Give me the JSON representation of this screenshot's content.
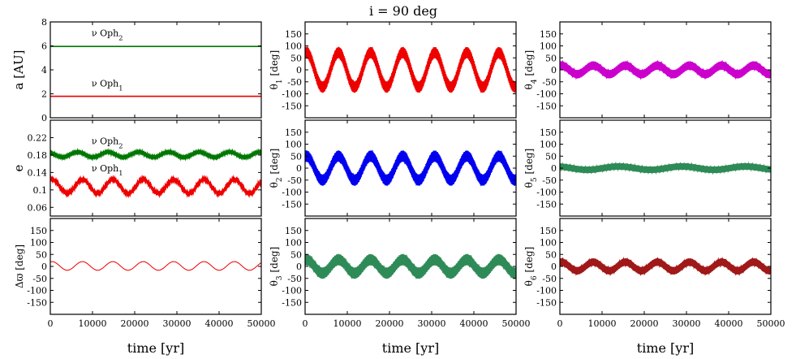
{
  "chart_data": {
    "type": "line",
    "title": "i = 90 deg",
    "xlabel": "time [yr]",
    "xlim": [
      0,
      50000
    ],
    "xticks": [
      0,
      10000,
      20000,
      30000,
      40000,
      50000
    ],
    "panels": [
      {
        "id": "a",
        "ylabel": "a [AU]",
        "ylim": [
          0,
          8
        ],
        "yticks": [
          0,
          2,
          4,
          6,
          8
        ],
        "show_xticklabels": false,
        "series": [
          {
            "name": "ν Oph2",
            "color": "#007700",
            "kind": "constant",
            "value": 5.95
          },
          {
            "name": "ν Oph1",
            "color": "#ee0000",
            "kind": "constant",
            "value": 1.79
          }
        ],
        "annotations": [
          {
            "text": "ν Oph2",
            "x": 13500,
            "y": 6.8
          },
          {
            "text": "ν Oph1",
            "x": 13500,
            "y": 2.6
          }
        ]
      },
      {
        "id": "e",
        "ylabel": "e",
        "ylim": [
          0.04,
          0.26
        ],
        "yticks": [
          0.06,
          0.1,
          0.14,
          0.18,
          0.22
        ],
        "show_xticklabels": false,
        "series": [
          {
            "name": "ν Oph2",
            "color": "#007700",
            "kind": "oscillation",
            "mean": 0.181,
            "amplitude": 0.006,
            "period": 7200,
            "phase": 2.2,
            "jitter": 0.002,
            "jitter_period": 220,
            "lw": 2.5
          },
          {
            "name": "ν Oph1",
            "color": "#ee0000",
            "kind": "oscillation",
            "mean": 0.108,
            "amplitude": 0.016,
            "period": 7200,
            "phase": 1.2,
            "jitter": 0.003,
            "jitter_period": 220,
            "lw": 2.5
          }
        ],
        "annotations": [
          {
            "text": "ν Oph2",
            "x": 13500,
            "y": 0.205
          },
          {
            "text": "ν Oph1",
            "x": 13500,
            "y": 0.143
          }
        ]
      },
      {
        "id": "dw",
        "ylabel": "Δϖ [deg]",
        "ylim": [
          -200,
          200
        ],
        "yticks": [
          -150,
          -100,
          -50,
          0,
          50,
          100,
          150
        ],
        "show_xticklabels": true,
        "series": [
          {
            "name": "Δϖ",
            "color": "#ee0000",
            "kind": "oscillation",
            "mean": 2,
            "amplitude": 18,
            "period": 7200,
            "phase": 1.2,
            "jitter": 0,
            "jitter_period": 220,
            "lw": 1
          }
        ],
        "annotations": []
      },
      {
        "id": "t1",
        "ylabel": "θ1 [deg]",
        "ylim": [
          -200,
          200
        ],
        "yticks": [
          -150,
          -100,
          -50,
          0,
          50,
          100,
          150
        ],
        "show_xticklabels": false,
        "series": [
          {
            "name": "θ1",
            "color": "#ee0000",
            "kind": "oscillation",
            "mean": 0,
            "amplitude": 72,
            "period": 7600,
            "phase": 1.3,
            "jitter": 24,
            "jitter_period": 180,
            "lw": 1.6
          }
        ],
        "annotations": []
      },
      {
        "id": "t2",
        "ylabel": "θ2 [deg]",
        "ylim": [
          -200,
          200
        ],
        "yticks": [
          -150,
          -100,
          -50,
          0,
          50,
          100,
          150
        ],
        "show_xticklabels": false,
        "series": [
          {
            "name": "θ2",
            "color": "#0000ee",
            "kind": "oscillation",
            "mean": 0,
            "amplitude": 50,
            "period": 7600,
            "phase": 1.3,
            "jitter": 24,
            "jitter_period": 180,
            "lw": 1.6
          }
        ],
        "annotations": []
      },
      {
        "id": "t3",
        "ylabel": "θ3 [deg]",
        "ylim": [
          -200,
          200
        ],
        "yticks": [
          -150,
          -100,
          -50,
          0,
          50,
          100,
          150
        ],
        "show_xticklabels": true,
        "series": [
          {
            "name": "θ3",
            "color": "#2e8b57",
            "kind": "oscillation",
            "mean": 0,
            "amplitude": 28,
            "period": 7600,
            "phase": 1.3,
            "jitter": 24,
            "jitter_period": 180,
            "lw": 1.6
          }
        ],
        "annotations": []
      },
      {
        "id": "t4",
        "ylabel": "θ4 [deg]",
        "ylim": [
          -200,
          200
        ],
        "yticks": [
          -150,
          -100,
          -50,
          0,
          50,
          100,
          150
        ],
        "show_xticklabels": false,
        "series": [
          {
            "name": "θ4",
            "color": "#cc00cc",
            "kind": "oscillation",
            "mean": 0,
            "amplitude": 18,
            "period": 7600,
            "phase": 1.3,
            "jitter": 18,
            "jitter_period": 180,
            "lw": 1.6
          }
        ],
        "annotations": []
      },
      {
        "id": "t5",
        "ylabel": "θ5 [deg]",
        "ylim": [
          -200,
          200
        ],
        "yticks": [
          -150,
          -100,
          -50,
          0,
          50,
          100,
          150
        ],
        "show_xticklabels": false,
        "series": [
          {
            "name": "θ5",
            "color": "#2e8b57",
            "kind": "oscillation",
            "mean": 0,
            "amplitude": 7,
            "period": 15000,
            "phase": 2.0,
            "jitter": 14,
            "jitter_period": 180,
            "lw": 1.4
          }
        ],
        "annotations": []
      },
      {
        "id": "t6",
        "ylabel": "θ6 [deg]",
        "ylim": [
          -200,
          200
        ],
        "yticks": [
          -150,
          -100,
          -50,
          0,
          50,
          100,
          150
        ],
        "show_xticklabels": true,
        "series": [
          {
            "name": "θ6",
            "color": "#a01818",
            "kind": "oscillation",
            "mean": 0,
            "amplitude": 18,
            "period": 7600,
            "phase": 1.3,
            "jitter": 16,
            "jitter_period": 180,
            "lw": 1.6
          }
        ],
        "annotations": []
      }
    ]
  }
}
